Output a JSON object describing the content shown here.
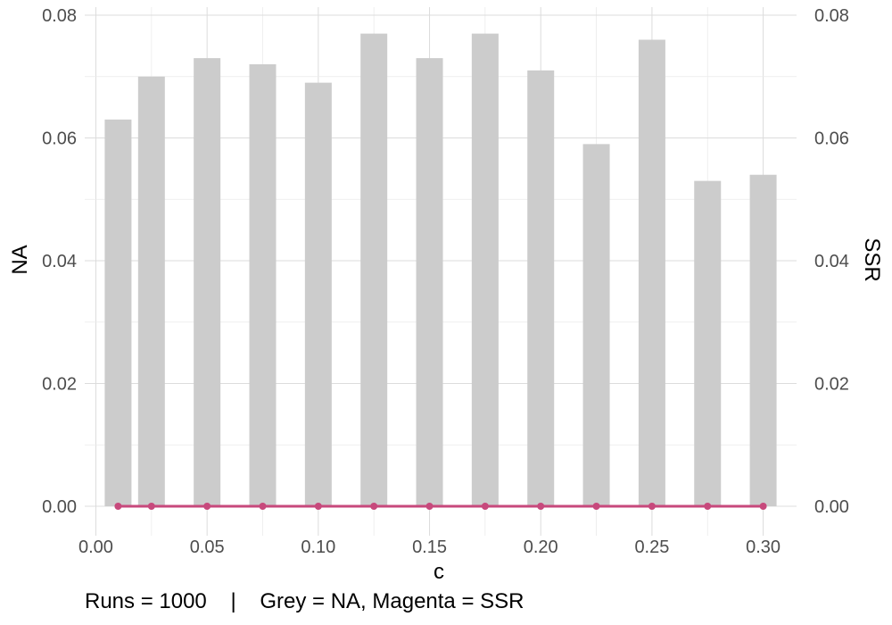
{
  "chart_data": {
    "type": "bar",
    "x": [
      0.01,
      0.025,
      0.05,
      0.075,
      0.1,
      0.125,
      0.15,
      0.175,
      0.2,
      0.225,
      0.25,
      0.275,
      0.3
    ],
    "series": [
      {
        "name": "NA",
        "type": "bar",
        "color": "#cccccc",
        "values": [
          0.063,
          0.07,
          0.073,
          0.072,
          0.069,
          0.077,
          0.073,
          0.077,
          0.071,
          0.059,
          0.076,
          0.053,
          0.054
        ]
      },
      {
        "name": "SSR",
        "type": "line",
        "color": "#c7497c",
        "values": [
          0,
          0,
          0,
          0,
          0,
          0,
          0,
          0,
          0,
          0,
          0,
          0,
          0
        ]
      }
    ],
    "xlabel": "c",
    "ylabel": "NA",
    "y2label": "SSR",
    "xlim": [
      -0.005,
      0.315
    ],
    "ylim": [
      0,
      0.08
    ],
    "xticks": [
      "0.00",
      "0.05",
      "0.10",
      "0.15",
      "0.20",
      "0.25",
      "0.30"
    ],
    "yticks": [
      "0.00",
      "0.02",
      "0.04",
      "0.06",
      "0.08"
    ],
    "y2ticks": [
      "0.00",
      "0.02",
      "0.04",
      "0.06",
      "0.08"
    ],
    "grid": true,
    "caption": "Runs = 1000    |    Grey = NA, Magenta = SSR"
  }
}
